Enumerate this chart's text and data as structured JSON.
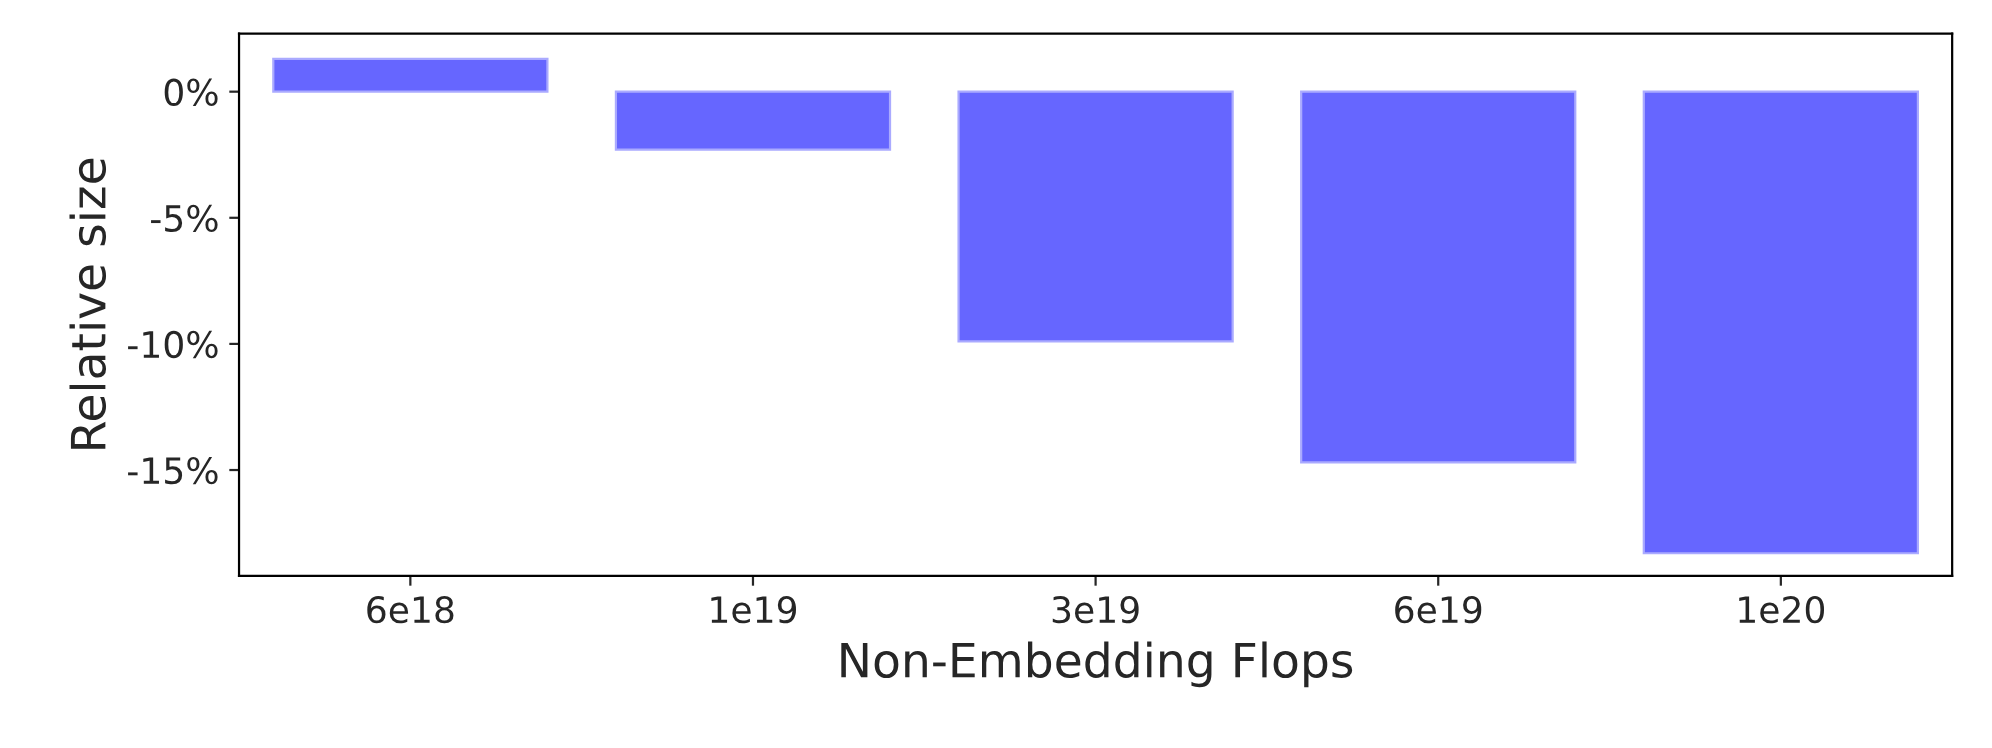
{
  "chart_data": {
    "type": "bar",
    "xlabel": "Non-Embedding Flops",
    "ylabel": "Relative size",
    "categories": [
      "6e18",
      "1e19",
      "3e19",
      "6e19",
      "1e20"
    ],
    "values": [
      1.3,
      -2.3,
      -9.9,
      -14.7,
      -18.3
    ],
    "color": "#6666ff",
    "ylim": [
      -19.2,
      2.3
    ],
    "yticks": [
      {
        "value": 0,
        "label": "0%"
      },
      {
        "value": -5,
        "label": "-5%"
      },
      {
        "value": -10,
        "label": "-10%"
      },
      {
        "value": -15,
        "label": "-15%"
      }
    ],
    "grid": false,
    "legend": false
  }
}
